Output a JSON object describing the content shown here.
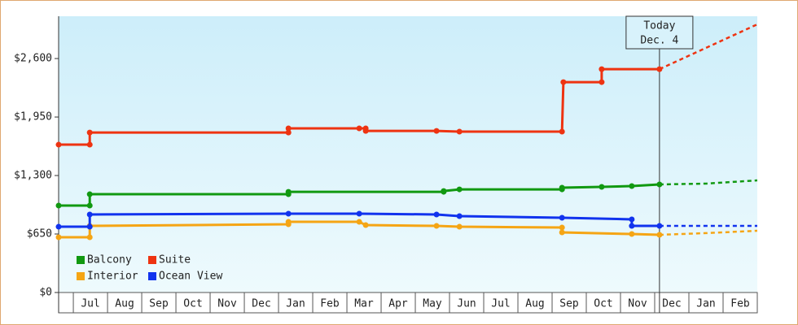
{
  "chart_data": {
    "type": "line",
    "step": true,
    "ylim": [
      0,
      3070
    ],
    "yticks": [
      {
        "value": 0,
        "label": "$0"
      },
      {
        "value": 650,
        "label": "$650"
      },
      {
        "value": 1300,
        "label": "$1,300"
      },
      {
        "value": 1950,
        "label": "$1,950"
      },
      {
        "value": 2600,
        "label": "$2,600"
      }
    ],
    "xlim": [
      0.57,
      21
    ],
    "xticks": [
      {
        "value": 1,
        "label": "Jul"
      },
      {
        "value": 2,
        "label": "Aug"
      },
      {
        "value": 3,
        "label": "Sep"
      },
      {
        "value": 4,
        "label": "Oct"
      },
      {
        "value": 5,
        "label": "Nov"
      },
      {
        "value": 6,
        "label": "Dec"
      },
      {
        "value": 7,
        "label": "Jan"
      },
      {
        "value": 8,
        "label": "Feb"
      },
      {
        "value": 9,
        "label": "Mar"
      },
      {
        "value": 10,
        "label": "Apr"
      },
      {
        "value": 11,
        "label": "May"
      },
      {
        "value": 12,
        "label": "Jun"
      },
      {
        "value": 13,
        "label": "Jul"
      },
      {
        "value": 14,
        "label": "Aug"
      },
      {
        "value": 15,
        "label": "Sep"
      },
      {
        "value": 16,
        "label": "Oct"
      },
      {
        "value": 17,
        "label": "Nov"
      },
      {
        "value": 18,
        "label": "Dec"
      },
      {
        "value": 19,
        "label": "Jan"
      },
      {
        "value": 20,
        "label": "Feb"
      }
    ],
    "annotation": {
      "x": 18.14,
      "label": [
        "Today",
        "Dec. 4"
      ]
    },
    "legend": "lower left",
    "series": [
      {
        "name": "Balcony",
        "color": "#119911",
        "x": [
          0.57,
          1.48,
          1.48,
          7.29,
          7.29,
          11.83,
          11.83,
          12.29,
          15.29,
          15.29,
          16.45,
          17.33,
          18.14
        ],
        "values": [
          966,
          966,
          1092,
          1092,
          1119,
          1119,
          1128,
          1146,
          1146,
          1165,
          1174,
          1183,
          1201
        ],
        "forecast": {
          "x": [
            18.14,
            19.5,
            21
          ],
          "values": [
            1201,
            1210,
            1246
          ]
        }
      },
      {
        "name": "Suite",
        "color": "#ee3311",
        "x": [
          0.57,
          1.48,
          1.48,
          7.29,
          7.29,
          9.36,
          9.55,
          9.55,
          11.62,
          12.29,
          15.29,
          15.33,
          16.45,
          16.45,
          18.14
        ],
        "values": [
          1643,
          1643,
          1778,
          1778,
          1824,
          1824,
          1824,
          1796,
          1796,
          1788,
          1788,
          2338,
          2338,
          2482,
          2482
        ],
        "forecast": {
          "x": [
            18.14,
            21
          ],
          "values": [
            2482,
            2980
          ]
        }
      },
      {
        "name": "Interior",
        "color": "#f5a514",
        "x": [
          0.57,
          1.48,
          1.48,
          7.29,
          7.29,
          9.36,
          9.55,
          11.62,
          12.29,
          15.29,
          15.29,
          17.33,
          18.14
        ],
        "values": [
          614,
          614,
          740,
          758,
          785,
          785,
          749,
          740,
          731,
          722,
          668,
          650,
          641
        ],
        "forecast": {
          "x": [
            18.14,
            19.5,
            21
          ],
          "values": [
            641,
            660,
            686
          ]
        }
      },
      {
        "name": "Ocean View",
        "color": "#1133ee",
        "x": [
          0.57,
          1.48,
          1.48,
          7.29,
          9.36,
          11.62,
          12.29,
          15.29,
          17.33,
          17.33,
          18.14
        ],
        "values": [
          731,
          731,
          867,
          876,
          876,
          867,
          849,
          831,
          813,
          740,
          740
        ],
        "forecast": {
          "x": [
            18.14,
            21
          ],
          "values": [
            740,
            740
          ]
        }
      }
    ]
  }
}
